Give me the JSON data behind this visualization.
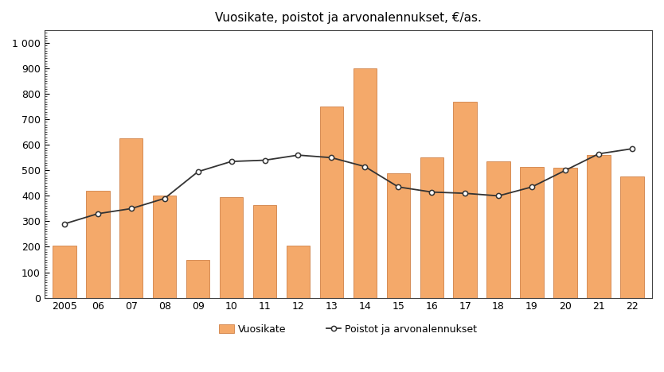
{
  "title": "Vuosikate, poistot ja arvonalennukset, €/as.",
  "years": [
    "2005",
    "06",
    "07",
    "08",
    "09",
    "10",
    "11",
    "12",
    "13",
    "14",
    "15",
    "16",
    "17",
    "18",
    "19",
    "20",
    "21",
    "22"
  ],
  "bar_values": [
    205,
    420,
    625,
    400,
    150,
    395,
    365,
    205,
    750,
    900,
    490,
    550,
    770,
    535,
    515,
    510,
    560,
    475
  ],
  "line_values": [
    290,
    330,
    350,
    390,
    495,
    535,
    540,
    560,
    550,
    515,
    435,
    415,
    410,
    400,
    435,
    500,
    565,
    585
  ],
  "bar_color": "#F4A96A",
  "bar_edgecolor": "#C87030",
  "line_color": "#333333",
  "marker_facecolor": "#ffffff",
  "marker_edgecolor": "#333333",
  "ylim": [
    0,
    1050
  ],
  "ytick_values": [
    0,
    100,
    200,
    300,
    400,
    500,
    600,
    700,
    800,
    900,
    1000
  ],
  "legend_bar_label": "Vuosikate",
  "legend_line_label": "Poistot ja arvonalennukset",
  "background_color": "#ffffff",
  "plot_background": "#ffffff",
  "title_fontsize": 11,
  "axis_fontsize": 9,
  "legend_fontsize": 9
}
